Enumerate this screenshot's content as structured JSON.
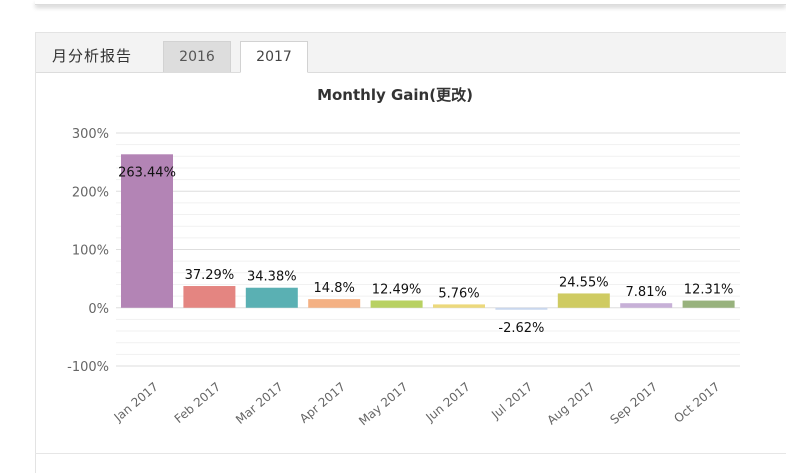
{
  "header": {
    "section_title": "月分析报告",
    "tabs": [
      {
        "label": "2016",
        "active": false
      },
      {
        "label": "2017",
        "active": true
      }
    ]
  },
  "chart_data": {
    "type": "bar",
    "title": "Monthly Gain(更改)",
    "xlabel": "",
    "ylabel": "",
    "ylim": [
      -100,
      300
    ],
    "yticks": [
      -100,
      0,
      100,
      200,
      300
    ],
    "ytick_labels": [
      "-100%",
      "0%",
      "100%",
      "200%",
      "300%"
    ],
    "grid": true,
    "categories": [
      "Jan 2017",
      "Feb 2017",
      "Mar 2017",
      "Apr 2017",
      "May 2017",
      "Jun 2017",
      "Jul 2017",
      "Aug 2017",
      "Sep 2017",
      "Oct 2017"
    ],
    "values": [
      263.44,
      37.29,
      34.38,
      14.8,
      12.49,
      5.76,
      -2.62,
      24.55,
      7.81,
      12.31
    ],
    "value_labels": [
      "263.44%",
      "37.29%",
      "34.38%",
      "14.8%",
      "12.49%",
      "5.76%",
      "-2.62%",
      "24.55%",
      "7.81%",
      "12.31%"
    ],
    "colors": [
      "#b384b5",
      "#e48581",
      "#5ab0b3",
      "#f4b184",
      "#b8d162",
      "#ecd97c",
      "#c9d7ee",
      "#cfcb62",
      "#c7b0d7",
      "#98b27d"
    ]
  }
}
